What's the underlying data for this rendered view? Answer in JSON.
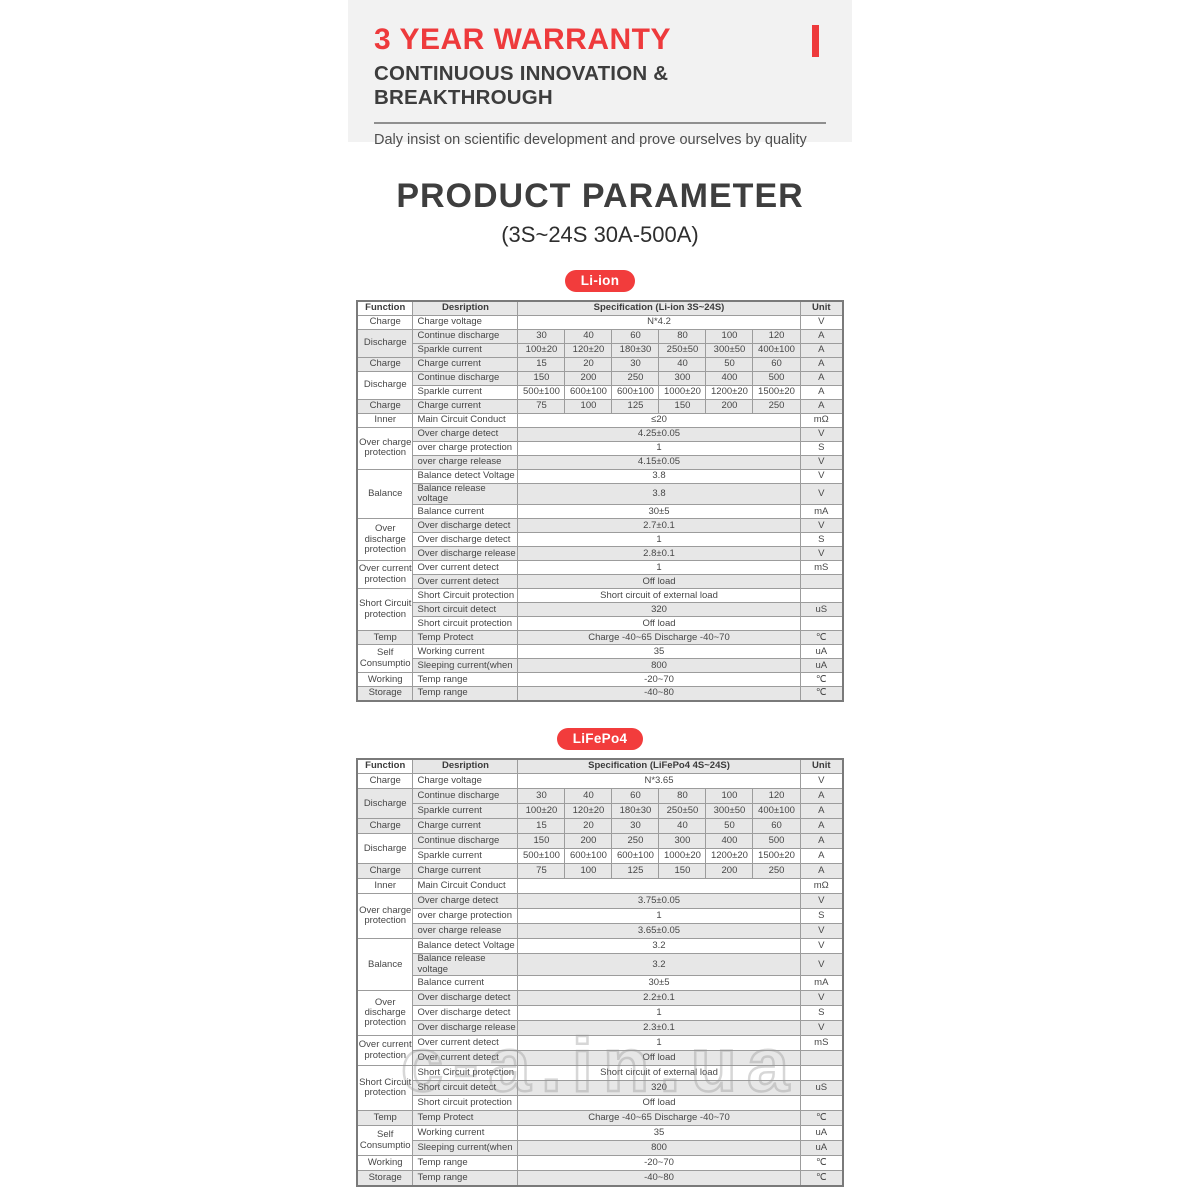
{
  "colors": {
    "accent_red": "#ee3a3c",
    "badge_red": "#f23c3c",
    "row_shade": "#e7e7e7",
    "banner_bg": "#f2f2f2"
  },
  "banner": {
    "title": "3 YEAR WARRANTY",
    "subtitle": "CONTINUOUS INNOVATION & BREAKTHROUGH",
    "tagline": "Daly insist on scientific development and prove ourselves by quality"
  },
  "page": {
    "title": "PRODUCT PARAMETER",
    "subtitle": "(3S~24S  30A-500A)"
  },
  "watermark": "c-a.in.ua",
  "tables": [
    {
      "badge": "Li-ion",
      "headers": {
        "function": "Function",
        "description": "Desription",
        "specification": "Specification  (Li-ion  3S~24S)",
        "unit": "Unit"
      },
      "groups": [
        {
          "function": "Charge",
          "rows": [
            {
              "description": "Charge voltage",
              "spec": "N*4.2",
              "unit": "V",
              "shade": false
            }
          ]
        },
        {
          "function": "Discharge",
          "rows": [
            {
              "description": "Continue discharge",
              "specs": [
                "30",
                "40",
                "60",
                "80",
                "100",
                "120"
              ],
              "unit": "A",
              "shade": true
            },
            {
              "description": "Sparkle current",
              "specs": [
                "100±20",
                "120±20",
                "180±30",
                "250±50",
                "300±50",
                "400±100"
              ],
              "unit": "A",
              "shade": true
            }
          ]
        },
        {
          "function": "Charge",
          "rows": [
            {
              "description": "Charge current",
              "specs": [
                "15",
                "20",
                "30",
                "40",
                "50",
                "60"
              ],
              "unit": "A",
              "shade": true
            }
          ]
        },
        {
          "function": "Discharge",
          "rows": [
            {
              "description": "Continue discharge",
              "specs": [
                "150",
                "200",
                "250",
                "300",
                "400",
                "500"
              ],
              "unit": "A",
              "shade": true
            },
            {
              "description": "Sparkle current",
              "specs": [
                "500±100",
                "600±100",
                "600±100",
                "1000±20",
                "1200±20",
                "1500±20"
              ],
              "unit": "A",
              "shade": false
            }
          ]
        },
        {
          "function": "Charge",
          "rows": [
            {
              "description": "Charge current",
              "specs": [
                "75",
                "100",
                "125",
                "150",
                "200",
                "250"
              ],
              "unit": "A",
              "shade": true
            }
          ]
        },
        {
          "function": "Inner",
          "rows": [
            {
              "description": "Main Circuit Conduct",
              "spec": "≤20",
              "unit": "mΩ",
              "shade": false
            }
          ]
        },
        {
          "function": "Over charge protection",
          "rows": [
            {
              "description": "Over charge detect",
              "spec": "4.25±0.05",
              "unit": "V",
              "shade": true
            },
            {
              "description": "over charge protection",
              "spec": "1",
              "unit": "S",
              "shade": false
            },
            {
              "description": "over charge release",
              "spec": "4.15±0.05",
              "unit": "V",
              "shade": true
            }
          ]
        },
        {
          "function": "Balance",
          "rows": [
            {
              "description": "Balance detect Voltage",
              "spec": "3.8",
              "unit": "V",
              "shade": false
            },
            {
              "description": "Balance release voltage",
              "spec": "3.8",
              "unit": "V",
              "shade": true
            },
            {
              "description": "Balance current",
              "spec": "30±5",
              "unit": "mA",
              "shade": false
            }
          ]
        },
        {
          "function": "Over discharge protection",
          "rows": [
            {
              "description": "Over discharge detect",
              "spec": "2.7±0.1",
              "unit": "V",
              "shade": true
            },
            {
              "description": "Over discharge detect",
              "spec": "1",
              "unit": "S",
              "shade": false
            },
            {
              "description": "Over discharge release",
              "spec": "2.8±0.1",
              "unit": "V",
              "shade": true
            }
          ]
        },
        {
          "function": "Over current protection",
          "rows": [
            {
              "description": "Over current detect",
              "spec": "1",
              "unit": "mS",
              "shade": false
            },
            {
              "description": "Over current detect",
              "spec": "Off load",
              "unit": "",
              "shade": true
            }
          ]
        },
        {
          "function": "Short Circuit protection",
          "rows": [
            {
              "description": "Short Circuit protection",
              "spec": "Short circuit of external load",
              "unit": "",
              "shade": false
            },
            {
              "description": "Short circuit detect",
              "spec": "320",
              "unit": "uS",
              "shade": true
            },
            {
              "description": "Short circuit protection",
              "spec": "Off load",
              "unit": "",
              "shade": false
            }
          ]
        },
        {
          "function": "Temp",
          "rows": [
            {
              "description": "Temp Protect",
              "spec": "Charge -40~65 Discharge -40~70",
              "unit": "℃",
              "shade": true
            }
          ]
        },
        {
          "function": "Self Consumptio",
          "rows": [
            {
              "description": "Working current",
              "spec": "35",
              "unit": "uA",
              "shade": false
            },
            {
              "description": "Sleeping current(when",
              "spec": "800",
              "unit": "uA",
              "shade": true
            }
          ]
        },
        {
          "function": "Working",
          "rows": [
            {
              "description": "Temp range",
              "spec": "-20~70",
              "unit": "℃",
              "shade": false
            }
          ]
        },
        {
          "function": "Storage",
          "rows": [
            {
              "description": "Temp range",
              "spec": "-40~80",
              "unit": "℃",
              "shade": true
            }
          ]
        }
      ]
    },
    {
      "badge": "LiFePo4",
      "headers": {
        "function": "Function",
        "description": "Desription",
        "specification": "Specification  (LiFePo4 4S~24S)",
        "unit": "Unit"
      },
      "groups": [
        {
          "function": "Charge",
          "rows": [
            {
              "description": "Charge voltage",
              "spec": "N*3.65",
              "unit": "V",
              "shade": false
            }
          ]
        },
        {
          "function": "Discharge",
          "rows": [
            {
              "description": "Continue discharge",
              "specs": [
                "30",
                "40",
                "60",
                "80",
                "100",
                "120"
              ],
              "unit": "A",
              "shade": true
            },
            {
              "description": "Sparkle current",
              "specs": [
                "100±20",
                "120±20",
                "180±30",
                "250±50",
                "300±50",
                "400±100"
              ],
              "unit": "A",
              "shade": true
            }
          ]
        },
        {
          "function": "Charge",
          "rows": [
            {
              "description": "Charge current",
              "specs": [
                "15",
                "20",
                "30",
                "40",
                "50",
                "60"
              ],
              "unit": "A",
              "shade": true
            }
          ]
        },
        {
          "function": "Discharge",
          "rows": [
            {
              "description": "Continue discharge",
              "specs": [
                "150",
                "200",
                "250",
                "300",
                "400",
                "500"
              ],
              "unit": "A",
              "shade": true
            },
            {
              "description": "Sparkle current",
              "specs": [
                "500±100",
                "600±100",
                "600±100",
                "1000±20",
                "1200±20",
                "1500±20"
              ],
              "unit": "A",
              "shade": false
            }
          ]
        },
        {
          "function": "Charge",
          "rows": [
            {
              "description": "Charge current",
              "specs": [
                "75",
                "100",
                "125",
                "150",
                "200",
                "250"
              ],
              "unit": "A",
              "shade": true
            }
          ]
        },
        {
          "function": "Inner",
          "rows": [
            {
              "description": "Main Circuit Conduct",
              "spec": "",
              "unit": "mΩ",
              "shade": false
            }
          ]
        },
        {
          "function": "Over charge protection",
          "rows": [
            {
              "description": "Over charge detect",
              "spec": "3.75±0.05",
              "unit": "V",
              "shade": true
            },
            {
              "description": "over charge protection",
              "spec": "1",
              "unit": "S",
              "shade": false
            },
            {
              "description": "over charge release",
              "spec": "3.65±0.05",
              "unit": "V",
              "shade": true
            }
          ]
        },
        {
          "function": "Balance",
          "rows": [
            {
              "description": "Balance detect Voltage",
              "spec": "3.2",
              "unit": "V",
              "shade": false
            },
            {
              "description": "Balance release voltage",
              "spec": "3.2",
              "unit": "V",
              "shade": true
            },
            {
              "description": "Balance current",
              "spec": "30±5",
              "unit": "mA",
              "shade": false
            }
          ]
        },
        {
          "function": "Over discharge protection",
          "rows": [
            {
              "description": "Over discharge detect",
              "spec": "2.2±0.1",
              "unit": "V",
              "shade": true
            },
            {
              "description": "Over discharge detect",
              "spec": "1",
              "unit": "S",
              "shade": false
            },
            {
              "description": "Over discharge release",
              "spec": "2.3±0.1",
              "unit": "V",
              "shade": true
            }
          ]
        },
        {
          "function": "Over current protection",
          "rows": [
            {
              "description": "Over current detect",
              "spec": "1",
              "unit": "mS",
              "shade": false
            },
            {
              "description": "Over current detect",
              "spec": "Off load",
              "unit": "",
              "shade": true
            }
          ]
        },
        {
          "function": "Short Circuit protection",
          "rows": [
            {
              "description": "Short Circuit protection",
              "spec": "Short circuit of external load",
              "unit": "",
              "shade": false
            },
            {
              "description": "Short circuit detect",
              "spec": "320",
              "unit": "uS",
              "shade": true
            },
            {
              "description": "Short circuit protection",
              "spec": "Off load",
              "unit": "",
              "shade": false
            }
          ]
        },
        {
          "function": "Temp",
          "rows": [
            {
              "description": "Temp Protect",
              "spec": "Charge -40~65 Discharge -40~70",
              "unit": "℃",
              "shade": true
            }
          ]
        },
        {
          "function": "Self Consumptio",
          "rows": [
            {
              "description": "Working current",
              "spec": "35",
              "unit": "uA",
              "shade": false
            },
            {
              "description": "Sleeping current(when",
              "spec": "800",
              "unit": "uA",
              "shade": true
            }
          ]
        },
        {
          "function": "Working",
          "rows": [
            {
              "description": "Temp range",
              "spec": "-20~70",
              "unit": "℃",
              "shade": false
            }
          ]
        },
        {
          "function": "Storage",
          "rows": [
            {
              "description": "Temp range",
              "spec": "-40~80",
              "unit": "℃",
              "shade": true
            }
          ]
        }
      ]
    }
  ]
}
